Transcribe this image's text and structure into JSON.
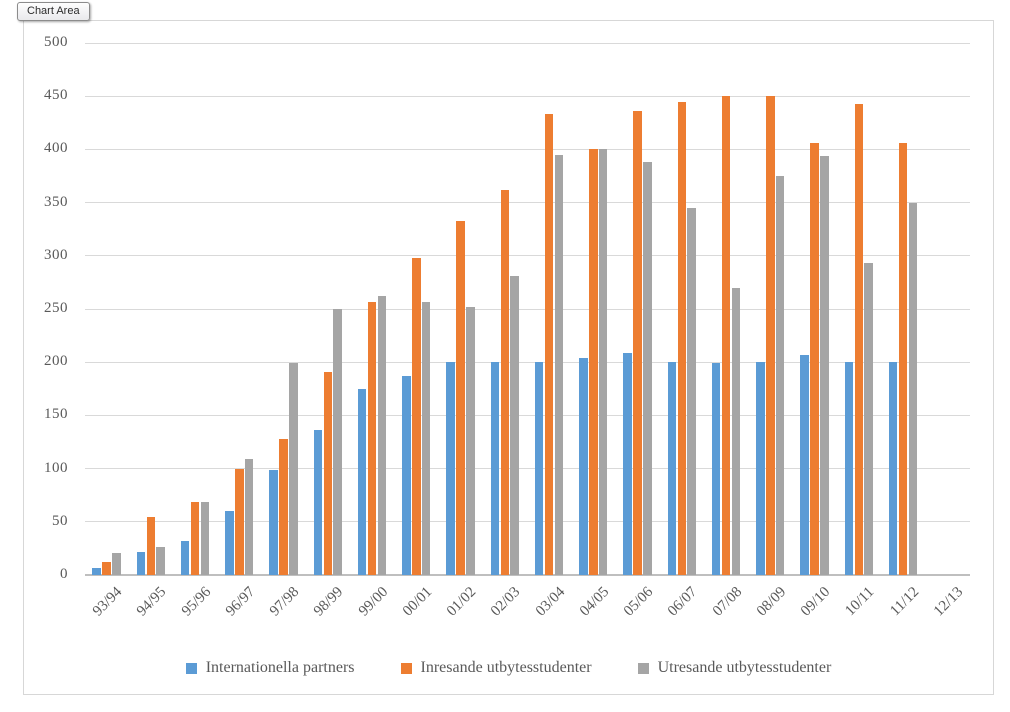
{
  "tooltip": {
    "label": "Chart Area"
  },
  "chart_data": {
    "type": "bar",
    "title": "",
    "xlabel": "",
    "ylabel": "",
    "ylim": [
      0,
      500
    ],
    "ytick_step": 50,
    "grid": true,
    "legend_position": "bottom",
    "categories": [
      "93/94",
      "94/95",
      "95/96",
      "96/97",
      "97/98",
      "98/99",
      "99/00",
      "00/01",
      "01/02",
      "02/03",
      "03/04",
      "04/05",
      "05/06",
      "06/07",
      "07/08",
      "08/09",
      "09/10",
      "10/11",
      "11/12",
      "12/13"
    ],
    "series": [
      {
        "name": "Internationella partners",
        "color": "#5B9BD5",
        "values": [
          7,
          22,
          32,
          60,
          99,
          136,
          175,
          187,
          200,
          200,
          200,
          204,
          209,
          200,
          199,
          200,
          207,
          200,
          200,
          0
        ]
      },
      {
        "name": "Inresande utbytesstudenter",
        "color": "#ED7D31",
        "values": [
          12,
          55,
          69,
          100,
          128,
          191,
          257,
          298,
          333,
          362,
          433,
          400,
          436,
          445,
          450,
          450,
          406,
          443,
          406,
          0
        ]
      },
      {
        "name": "Utresande utbytesstudenter",
        "color": "#A5A5A5",
        "values": [
          21,
          26,
          69,
          109,
          199,
          250,
          262,
          257,
          252,
          281,
          395,
          400,
          388,
          345,
          270,
          375,
          394,
          293,
          350,
          0
        ]
      }
    ]
  },
  "style": {
    "gridline_color": "#d9d9d9",
    "axis_line_color": "#bfbfbf",
    "text_color": "#595959",
    "frame_border_color": "#d7d7d7"
  }
}
